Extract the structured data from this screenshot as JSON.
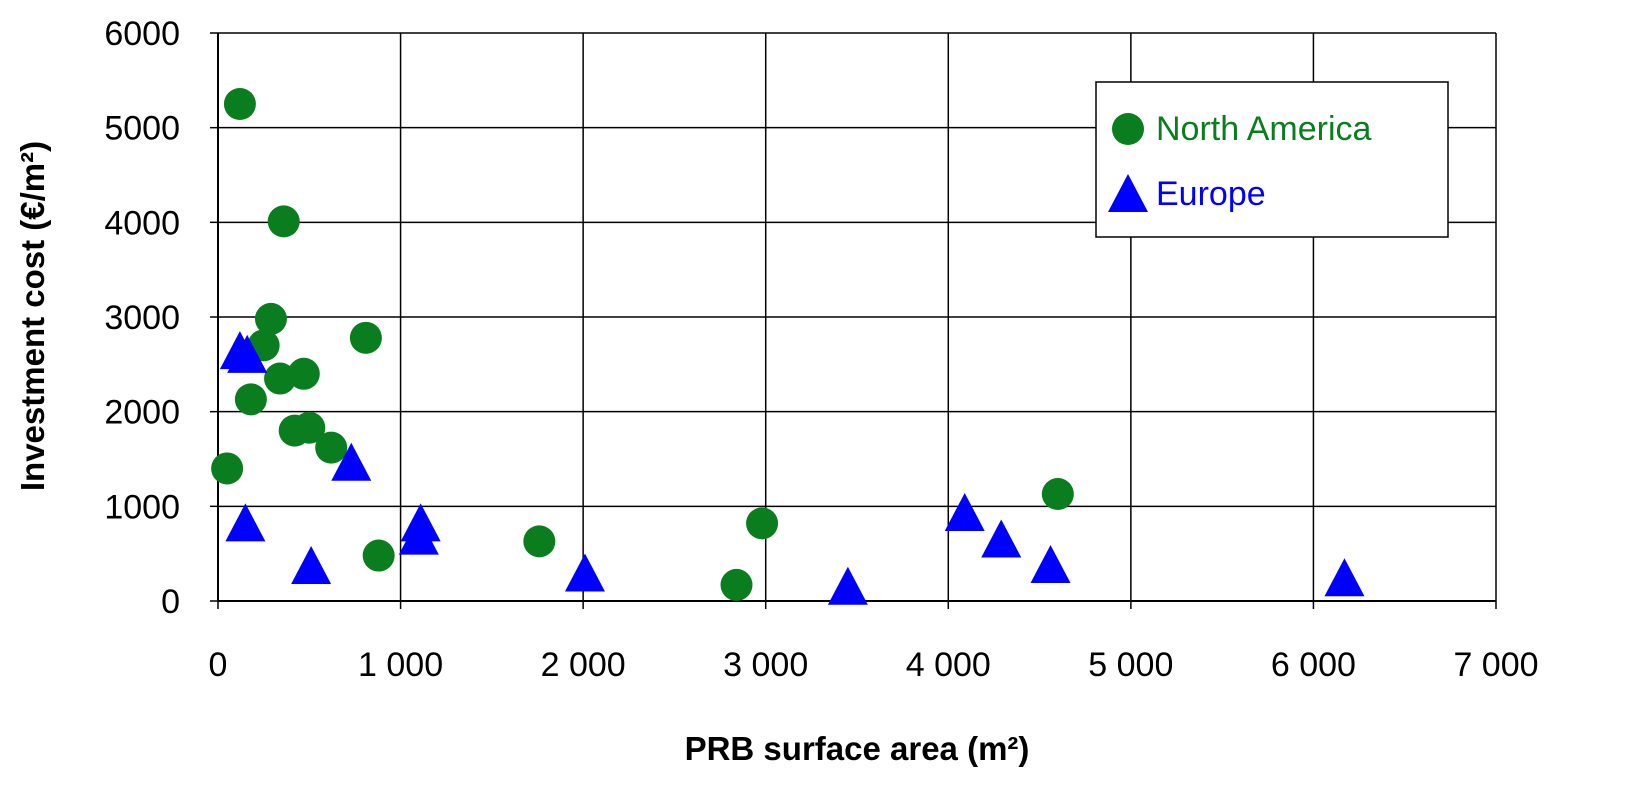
{
  "chart_data": {
    "type": "scatter",
    "title": "",
    "xlabel": "PRB surface area (m²)",
    "ylabel": "Investment cost (€/m²)",
    "xlim": [
      0,
      7000
    ],
    "ylim": [
      0,
      6000
    ],
    "grid": true,
    "legend_position": "top-right",
    "x_tick_labels": [
      "0",
      "1 000",
      "2 000",
      "3 000",
      "4 000",
      "5 000",
      "6 000",
      "7 000"
    ],
    "x_tick_values": [
      0,
      1000,
      2000,
      3000,
      4000,
      5000,
      6000,
      7000
    ],
    "y_tick_labels": [
      "0",
      "1000",
      "2000",
      "3000",
      "4000",
      "5000",
      "6000"
    ],
    "y_tick_values": [
      0,
      1000,
      2000,
      3000,
      4000,
      5000,
      6000
    ],
    "series": [
      {
        "name": "North America",
        "marker": "circle",
        "color": "#0a7d1e",
        "points": [
          [
            120,
            5250
          ],
          [
            360,
            4010
          ],
          [
            290,
            2980
          ],
          [
            250,
            2700
          ],
          [
            340,
            2350
          ],
          [
            470,
            2400
          ],
          [
            180,
            2130
          ],
          [
            420,
            1800
          ],
          [
            500,
            1830
          ],
          [
            620,
            1620
          ],
          [
            50,
            1400
          ],
          [
            810,
            2780
          ],
          [
            880,
            480
          ],
          [
            1760,
            630
          ],
          [
            2980,
            820
          ],
          [
            2840,
            170
          ],
          [
            4600,
            1130
          ]
        ]
      },
      {
        "name": "Europe",
        "marker": "triangle",
        "color": "#0000ff",
        "points": [
          [
            120,
            2640
          ],
          [
            160,
            2600
          ],
          [
            730,
            1460
          ],
          [
            150,
            820
          ],
          [
            510,
            370
          ],
          [
            1110,
            820
          ],
          [
            1100,
            680
          ],
          [
            2010,
            290
          ],
          [
            3450,
            150
          ],
          [
            4090,
            930
          ],
          [
            4290,
            650
          ],
          [
            4560,
            380
          ],
          [
            6170,
            240
          ]
        ]
      }
    ]
  }
}
